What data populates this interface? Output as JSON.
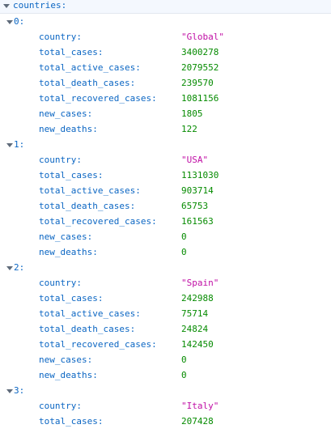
{
  "root_key": "countries:",
  "countries": [
    {
      "index_label": "0:",
      "fields": [
        {
          "key": "country:",
          "value": "\"Global\"",
          "type": "str"
        },
        {
          "key": "total_cases:",
          "value": "3400278",
          "type": "num"
        },
        {
          "key": "total_active_cases:",
          "value": "2079552",
          "type": "num"
        },
        {
          "key": "total_death_cases:",
          "value": "239570",
          "type": "num"
        },
        {
          "key": "total_recovered_cases:",
          "value": "1081156",
          "type": "num"
        },
        {
          "key": "new_cases:",
          "value": "1805",
          "type": "num"
        },
        {
          "key": "new_deaths:",
          "value": "122",
          "type": "num"
        }
      ]
    },
    {
      "index_label": "1:",
      "fields": [
        {
          "key": "country:",
          "value": "\"USA\"",
          "type": "str"
        },
        {
          "key": "total_cases:",
          "value": "1131030",
          "type": "num"
        },
        {
          "key": "total_active_cases:",
          "value": "903714",
          "type": "num"
        },
        {
          "key": "total_death_cases:",
          "value": "65753",
          "type": "num"
        },
        {
          "key": "total_recovered_cases:",
          "value": "161563",
          "type": "num"
        },
        {
          "key": "new_cases:",
          "value": "0",
          "type": "num"
        },
        {
          "key": "new_deaths:",
          "value": "0",
          "type": "num"
        }
      ]
    },
    {
      "index_label": "2:",
      "fields": [
        {
          "key": "country:",
          "value": "\"Spain\"",
          "type": "str"
        },
        {
          "key": "total_cases:",
          "value": "242988",
          "type": "num"
        },
        {
          "key": "total_active_cases:",
          "value": "75714",
          "type": "num"
        },
        {
          "key": "total_death_cases:",
          "value": "24824",
          "type": "num"
        },
        {
          "key": "total_recovered_cases:",
          "value": "142450",
          "type": "num"
        },
        {
          "key": "new_cases:",
          "value": "0",
          "type": "num"
        },
        {
          "key": "new_deaths:",
          "value": "0",
          "type": "num"
        }
      ]
    },
    {
      "index_label": "3:",
      "fields": [
        {
          "key": "country:",
          "value": "\"Italy\"",
          "type": "str"
        },
        {
          "key": "total_cases:",
          "value": "207428",
          "type": "num"
        }
      ]
    }
  ],
  "colors": {
    "key": "#0b66c3",
    "string": "#c00fa5",
    "number": "#058b00",
    "twisty": "#5f6b7a"
  },
  "icons": {
    "expand_toggle": "chevron-down-icon"
  }
}
